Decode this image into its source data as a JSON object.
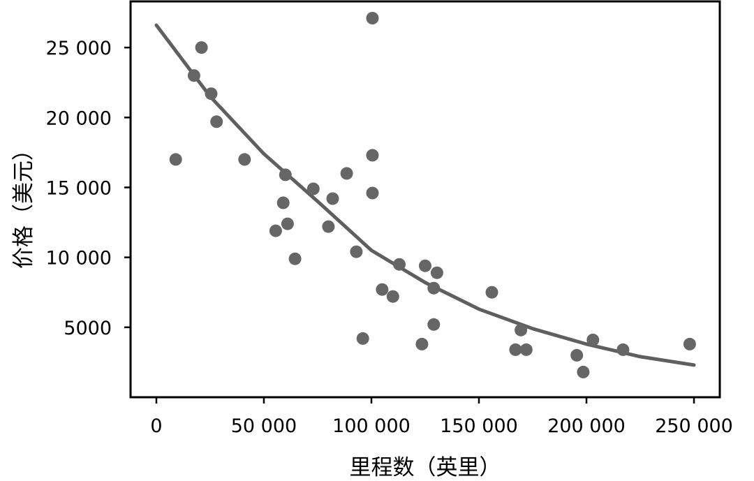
{
  "chart_data": {
    "type": "scatter",
    "title": "",
    "xlabel": "里程数（英里）",
    "ylabel": "价格（美元）",
    "xlim": [
      -12000,
      262000
    ],
    "ylim": [
      0,
      28300
    ],
    "xticks": [
      0,
      50000,
      100000,
      150000,
      200000,
      250000
    ],
    "xtick_labels": [
      "0",
      "50 000",
      "100 000",
      "150 000",
      "200 000",
      "250 000"
    ],
    "yticks": [
      5000,
      10000,
      15000,
      20000,
      25000
    ],
    "ytick_labels": [
      "5000",
      "10 000",
      "15 000",
      "20 000",
      "25 000"
    ],
    "grid": false,
    "legend": "none",
    "point_color": "#666666",
    "curve_color": "#5f5f5f",
    "points": [
      {
        "x": 9000,
        "y": 17000
      },
      {
        "x": 17500,
        "y": 23000
      },
      {
        "x": 21000,
        "y": 25000
      },
      {
        "x": 25500,
        "y": 21700
      },
      {
        "x": 28000,
        "y": 19700
      },
      {
        "x": 41000,
        "y": 17000
      },
      {
        "x": 55500,
        "y": 11900
      },
      {
        "x": 59000,
        "y": 13900
      },
      {
        "x": 60000,
        "y": 15900
      },
      {
        "x": 61000,
        "y": 12400
      },
      {
        "x": 64500,
        "y": 9900
      },
      {
        "x": 73000,
        "y": 14900
      },
      {
        "x": 80000,
        "y": 12200
      },
      {
        "x": 82000,
        "y": 14200
      },
      {
        "x": 88500,
        "y": 16000
      },
      {
        "x": 93000,
        "y": 10400
      },
      {
        "x": 96000,
        "y": 4200
      },
      {
        "x": 100500,
        "y": 27100
      },
      {
        "x": 100500,
        "y": 17300
      },
      {
        "x": 100500,
        "y": 14600
      },
      {
        "x": 105000,
        "y": 7700
      },
      {
        "x": 110000,
        "y": 7200
      },
      {
        "x": 113000,
        "y": 9500
      },
      {
        "x": 123500,
        "y": 3800
      },
      {
        "x": 125000,
        "y": 9400
      },
      {
        "x": 129000,
        "y": 5200
      },
      {
        "x": 129000,
        "y": 7800
      },
      {
        "x": 130500,
        "y": 8900
      },
      {
        "x": 156000,
        "y": 7500
      },
      {
        "x": 167000,
        "y": 3400
      },
      {
        "x": 169500,
        "y": 4800
      },
      {
        "x": 172000,
        "y": 3400
      },
      {
        "x": 195500,
        "y": 3000
      },
      {
        "x": 198500,
        "y": 1800
      },
      {
        "x": 203000,
        "y": 4100
      },
      {
        "x": 217000,
        "y": 3400
      },
      {
        "x": 248000,
        "y": 3800
      }
    ],
    "fit_curve": {
      "model": "exponential",
      "x": [
        0,
        25000,
        50000,
        75000,
        100000,
        125000,
        150000,
        175000,
        200000,
        225000,
        250000
      ],
      "y": [
        26600,
        21500,
        17400,
        14000,
        10500,
        8200,
        6300,
        4900,
        3800,
        2900,
        2300
      ]
    }
  }
}
